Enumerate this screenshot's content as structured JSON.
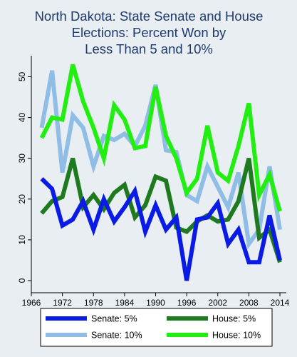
{
  "chart_data": {
    "type": "line",
    "title": "North Dakota: State Senate and House Elections: Percent Won by Less Than 5 and 10%",
    "title_lines": [
      "North Dakota: State Senate and House",
      "Elections: Percent Won by",
      "Less Than 5 and 10%"
    ],
    "xlabel": "",
    "ylabel": "",
    "xlim": [
      1966,
      2014
    ],
    "ylim": [
      0,
      55
    ],
    "x_ticks": [
      1966,
      1972,
      1978,
      1984,
      1990,
      1996,
      2002,
      2008,
      2014
    ],
    "y_ticks": [
      0,
      10,
      20,
      30,
      40,
      50
    ],
    "grid": false,
    "legend_position": "bottom",
    "x": [
      1968,
      1970,
      1972,
      1974,
      1976,
      1978,
      1980,
      1982,
      1984,
      1986,
      1988,
      1990,
      1992,
      1994,
      1996,
      1998,
      2000,
      2002,
      2004,
      2006,
      2008,
      2010,
      2012,
      2014
    ],
    "series": [
      {
        "name": "Senate: 5%",
        "color": "#0b1be6",
        "values": [
          25,
          22.5,
          13.5,
          15,
          19.5,
          12.5,
          20,
          14.5,
          18,
          22,
          12,
          18.5,
          12.5,
          15.5,
          0,
          15,
          15.5,
          19,
          9,
          12.5,
          4.5,
          4.5,
          16,
          5
        ]
      },
      {
        "name": "House: 5%",
        "color": "#1f7a1f",
        "values": [
          16.5,
          19.5,
          20.5,
          30,
          18,
          21,
          17.5,
          21.5,
          23.5,
          15.5,
          18.5,
          25.5,
          24.5,
          13,
          12,
          14.5,
          16,
          14.5,
          15,
          19.5,
          30,
          10.5,
          12.5,
          4.5
        ]
      },
      {
        "name": "Senate: 10%",
        "color": "#8fbde6",
        "values": [
          37.5,
          51.5,
          26.5,
          40.5,
          37.5,
          28,
          35.5,
          34.5,
          36,
          33,
          38,
          48,
          32,
          31.5,
          21,
          19.5,
          28,
          23,
          18,
          26.5,
          9,
          12.5,
          28,
          12.5
        ]
      },
      {
        "name": "House: 10%",
        "color": "#22ee11",
        "values": [
          35,
          40,
          39.5,
          53,
          44,
          37.5,
          30,
          43,
          39.5,
          32.5,
          33,
          47.5,
          35.5,
          30,
          21.5,
          25,
          38,
          26.5,
          24.5,
          33,
          43.5,
          21,
          26,
          17
        ]
      }
    ],
    "legend_layout": [
      [
        "Senate: 5%",
        "House: 5%"
      ],
      [
        "Senate: 10%",
        "House: 10%"
      ]
    ]
  }
}
